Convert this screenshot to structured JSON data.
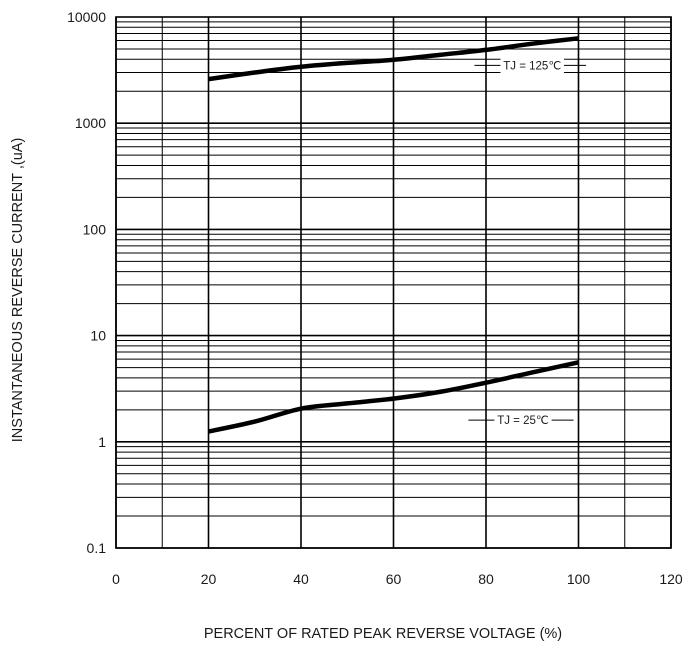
{
  "chart_data": {
    "type": "line",
    "title": "",
    "xlabel": "PERCENT OF RATED PEAK REVERSE VOLTAGE  (%)",
    "ylabel": "INSTANTANEOUS REVERSE CURRENT ,(uA)",
    "xlim": [
      0,
      120
    ],
    "ylim": [
      0.1,
      10000
    ],
    "y_scale": "log",
    "grid": true,
    "x_ticks": [
      0,
      20,
      40,
      60,
      80,
      100,
      120
    ],
    "x_tick_labels": [
      "0",
      "20",
      "40",
      "60",
      "80",
      "100",
      "120"
    ],
    "y_ticks": [
      0.1,
      1,
      10,
      100,
      1000,
      10000
    ],
    "y_tick_labels": [
      "0.1",
      "1",
      "10",
      "100",
      "1000",
      "10000"
    ],
    "series": [
      {
        "name": "TJ = 125℃",
        "x": [
          20,
          30,
          40,
          50,
          60,
          70,
          80,
          90,
          100
        ],
        "y": [
          2600,
          3000,
          3400,
          3700,
          3950,
          4400,
          4900,
          5600,
          6300
        ]
      },
      {
        "name": "TJ = 25℃",
        "x": [
          20,
          30,
          40,
          50,
          60,
          70,
          80,
          90,
          100
        ],
        "y": [
          1.25,
          1.55,
          2.05,
          2.3,
          2.55,
          2.95,
          3.6,
          4.5,
          5.6
        ]
      }
    ],
    "annotations": [
      {
        "series": 0,
        "text": "TJ = 125℃",
        "x": 90,
        "y": 3500
      },
      {
        "series": 1,
        "text": "TJ = 25℃",
        "x": 88,
        "y": 1.6
      }
    ]
  }
}
